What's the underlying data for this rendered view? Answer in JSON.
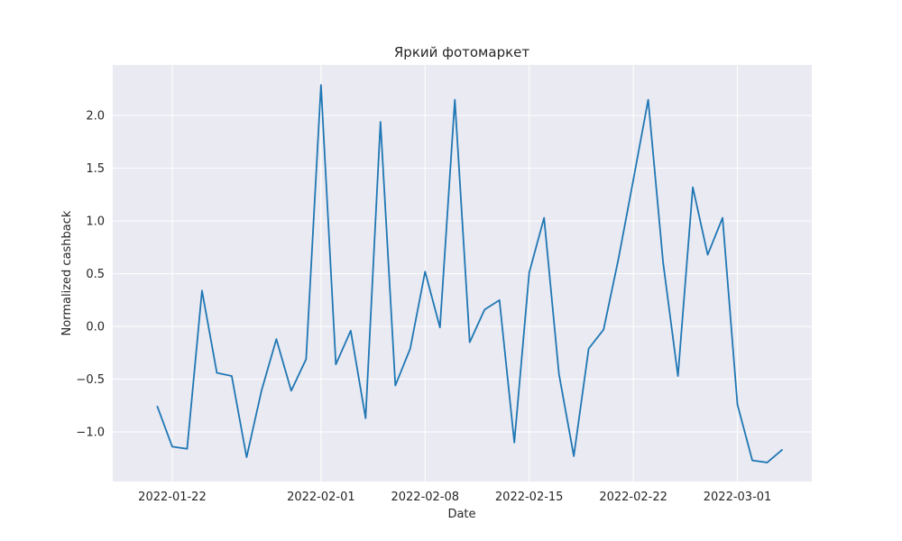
{
  "chart_data": {
    "type": "line",
    "title": "Яркий фотомаркет",
    "xlabel": "Date",
    "ylabel": "Normalized cashback",
    "x_tick_labels": [
      "2022-01-22",
      "2022-02-01",
      "2022-02-08",
      "2022-02-15",
      "2022-02-22",
      "2022-03-01"
    ],
    "y_tick_labels": [
      "−1.0",
      "−0.5",
      "0.0",
      "0.5",
      "1.0",
      "1.5",
      "2.0"
    ],
    "y_ticks": [
      -1.0,
      -0.5,
      0.0,
      0.5,
      1.0,
      1.5,
      2.0
    ],
    "xlim": [
      "2022-01-18",
      "2022-03-06"
    ],
    "ylim": [
      -1.47,
      2.48
    ],
    "grid": true,
    "style": {
      "background": "#eaeaf2",
      "grid_color": "#ffffff",
      "line_color": "#1f77b4"
    },
    "series": [
      {
        "x": [
          "2022-01-21",
          "2022-01-22",
          "2022-01-23",
          "2022-01-24",
          "2022-01-25",
          "2022-01-26",
          "2022-01-27",
          "2022-01-28",
          "2022-01-29",
          "2022-01-30",
          "2022-01-31",
          "2022-02-01",
          "2022-02-02",
          "2022-02-03",
          "2022-02-04",
          "2022-02-05",
          "2022-02-06",
          "2022-02-07",
          "2022-02-08",
          "2022-02-09",
          "2022-02-10",
          "2022-02-11",
          "2022-02-12",
          "2022-02-13",
          "2022-02-14",
          "2022-02-15",
          "2022-02-16",
          "2022-02-17",
          "2022-02-18",
          "2022-02-19",
          "2022-02-20",
          "2022-02-21",
          "2022-02-22",
          "2022-02-23",
          "2022-02-24",
          "2022-02-25",
          "2022-02-26",
          "2022-02-27",
          "2022-02-28",
          "2022-03-01",
          "2022-03-02",
          "2022-03-03",
          "2022-03-04"
        ],
        "y": [
          -0.76,
          -1.14,
          -1.16,
          0.34,
          -0.44,
          -0.47,
          -1.24,
          -0.61,
          -0.12,
          -0.61,
          -0.31,
          2.29,
          -0.36,
          -0.04,
          -0.87,
          1.94,
          -0.56,
          -0.21,
          0.52,
          -0.01,
          2.15,
          -0.15,
          0.16,
          0.25,
          -1.1,
          0.51,
          1.03,
          -0.45,
          -1.23,
          -0.21,
          -0.03,
          0.64,
          1.39,
          2.15,
          0.61,
          -0.47,
          1.32,
          0.68,
          1.03,
          -0.74,
          -1.27,
          -1.29,
          -1.17
        ]
      }
    ]
  }
}
